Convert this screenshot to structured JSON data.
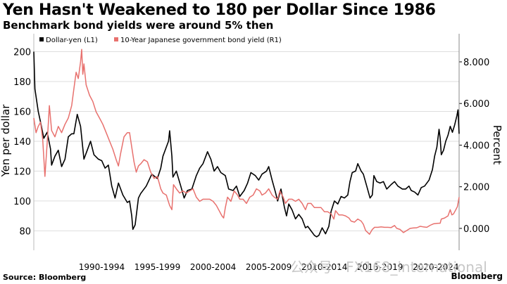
{
  "title": "Yen Hasn't Weakened to 180 per Dollar Since 1986",
  "subtitle": "Benchmark bond yields were around 5% then",
  "source": "Source: Bloomberg",
  "brand": "Bloomberg",
  "watermark": "公众号 · FX168_international",
  "colors": {
    "usdjpy": "#000000",
    "jgb": "#e8716e",
    "grid": "#dddddd",
    "axis": "#bbbbbb"
  },
  "chart_data": {
    "type": "line",
    "legend": [
      "Dollar-yen (L1)",
      "10-Year Japanese government bond yield (R1)"
    ],
    "ylabel_left": "Yen per dollar",
    "ylabel_right": "Percent",
    "x_ticks": [
      "1990-1994",
      "1995-1999",
      "2000-2004",
      "2005-2009",
      "2010-2014",
      "2015-2019",
      "2020-2024"
    ],
    "xlim": [
      1986.4,
      2024.6
    ],
    "ylim_left": [
      67,
      212
    ],
    "y_ticks_left": [
      80,
      100,
      120,
      140,
      160,
      180,
      200
    ],
    "ylim_right": [
      -1.05,
      9.35
    ],
    "y_ticks_right": [
      "0.000",
      "2.000",
      "4.000",
      "6.000",
      "8.000"
    ],
    "y_ticks_right_values": [
      0,
      2,
      4,
      6,
      8
    ],
    "grid": "horizontal",
    "legend_position": "top-left",
    "series": [
      {
        "name": "Dollar-yen (L1)",
        "axis": "left",
        "points": [
          [
            1986.4,
            200
          ],
          [
            1986.5,
            175
          ],
          [
            1986.8,
            160
          ],
          [
            1987.0,
            153
          ],
          [
            1987.3,
            142
          ],
          [
            1987.6,
            146
          ],
          [
            1987.9,
            135
          ],
          [
            1988.0,
            124
          ],
          [
            1988.3,
            130
          ],
          [
            1988.6,
            134
          ],
          [
            1988.9,
            123
          ],
          [
            1989.2,
            128
          ],
          [
            1989.5,
            143
          ],
          [
            1989.8,
            145
          ],
          [
            1990.0,
            145
          ],
          [
            1990.3,
            158
          ],
          [
            1990.6,
            150
          ],
          [
            1990.9,
            128
          ],
          [
            1991.2,
            134
          ],
          [
            1991.5,
            140
          ],
          [
            1991.8,
            131
          ],
          [
            1992.2,
            128
          ],
          [
            1992.5,
            127
          ],
          [
            1992.8,
            122
          ],
          [
            1993.1,
            124
          ],
          [
            1993.4,
            110
          ],
          [
            1993.7,
            102
          ],
          [
            1994.0,
            112
          ],
          [
            1994.4,
            104
          ],
          [
            1994.8,
            99
          ],
          [
            1995.0,
            100
          ],
          [
            1995.2,
            90
          ],
          [
            1995.3,
            81
          ],
          [
            1995.5,
            84
          ],
          [
            1995.8,
            102
          ],
          [
            1996.0,
            105
          ],
          [
            1996.5,
            110
          ],
          [
            1997.0,
            118
          ],
          [
            1997.5,
            115
          ],
          [
            1997.8,
            122
          ],
          [
            1998.0,
            130
          ],
          [
            1998.5,
            140
          ],
          [
            1998.6,
            147
          ],
          [
            1998.8,
            130
          ],
          [
            1998.9,
            116
          ],
          [
            1999.2,
            120
          ],
          [
            1999.6,
            110
          ],
          [
            1999.9,
            102
          ],
          [
            2000.2,
            107
          ],
          [
            2000.6,
            108
          ],
          [
            2001.0,
            117
          ],
          [
            2001.3,
            122
          ],
          [
            2001.6,
            125
          ],
          [
            2002.0,
            133
          ],
          [
            2002.3,
            128
          ],
          [
            2002.6,
            120
          ],
          [
            2002.9,
            123
          ],
          [
            2003.2,
            119
          ],
          [
            2003.6,
            117
          ],
          [
            2003.9,
            108
          ],
          [
            2004.3,
            107
          ],
          [
            2004.6,
            110
          ],
          [
            2004.9,
            103
          ],
          [
            2005.3,
            107
          ],
          [
            2005.6,
            112
          ],
          [
            2005.9,
            119
          ],
          [
            2006.3,
            117
          ],
          [
            2006.6,
            114
          ],
          [
            2006.9,
            118
          ],
          [
            2007.3,
            120
          ],
          [
            2007.5,
            123
          ],
          [
            2007.8,
            114
          ],
          [
            2008.1,
            106
          ],
          [
            2008.3,
            100
          ],
          [
            2008.6,
            108
          ],
          [
            2008.9,
            96
          ],
          [
            2009.1,
            90
          ],
          [
            2009.3,
            98
          ],
          [
            2009.6,
            94
          ],
          [
            2009.9,
            88
          ],
          [
            2010.2,
            91
          ],
          [
            2010.5,
            88
          ],
          [
            2010.8,
            82
          ],
          [
            2011.0,
            83
          ],
          [
            2011.3,
            80
          ],
          [
            2011.6,
            77
          ],
          [
            2011.8,
            76
          ],
          [
            2012.0,
            77
          ],
          [
            2012.3,
            82
          ],
          [
            2012.6,
            78
          ],
          [
            2012.9,
            83
          ],
          [
            2013.1,
            93
          ],
          [
            2013.4,
            100
          ],
          [
            2013.7,
            98
          ],
          [
            2014.0,
            103
          ],
          [
            2014.3,
            102
          ],
          [
            2014.6,
            104
          ],
          [
            2014.8,
            113
          ],
          [
            2015.0,
            119
          ],
          [
            2015.3,
            120
          ],
          [
            2015.5,
            125
          ],
          [
            2015.8,
            120
          ],
          [
            2016.0,
            118
          ],
          [
            2016.3,
            110
          ],
          [
            2016.6,
            102
          ],
          [
            2016.8,
            104
          ],
          [
            2016.95,
            117
          ],
          [
            2017.2,
            113
          ],
          [
            2017.5,
            112
          ],
          [
            2017.8,
            113
          ],
          [
            2018.1,
            108
          ],
          [
            2018.5,
            111
          ],
          [
            2018.8,
            113
          ],
          [
            2019.1,
            110
          ],
          [
            2019.5,
            108
          ],
          [
            2019.8,
            108
          ],
          [
            2020.1,
            110
          ],
          [
            2020.3,
            107
          ],
          [
            2020.6,
            106
          ],
          [
            2020.9,
            104
          ],
          [
            2021.2,
            109
          ],
          [
            2021.5,
            110
          ],
          [
            2021.9,
            114
          ],
          [
            2022.2,
            121
          ],
          [
            2022.4,
            130
          ],
          [
            2022.6,
            136
          ],
          [
            2022.8,
            148
          ],
          [
            2022.9,
            142
          ],
          [
            2023.0,
            131
          ],
          [
            2023.2,
            134
          ],
          [
            2023.4,
            140
          ],
          [
            2023.6,
            144
          ],
          [
            2023.8,
            150
          ],
          [
            2024.0,
            146
          ],
          [
            2024.2,
            151
          ],
          [
            2024.4,
            157
          ],
          [
            2024.5,
            161
          ],
          [
            2024.6,
            145
          ]
        ]
      },
      {
        "name": "10-Year Japanese government bond yield (R1)",
        "axis": "right",
        "points": [
          [
            1986.4,
            5.3
          ],
          [
            1986.6,
            4.6
          ],
          [
            1986.8,
            4.9
          ],
          [
            1987.0,
            5.1
          ],
          [
            1987.2,
            4.3
          ],
          [
            1987.4,
            2.5
          ],
          [
            1987.6,
            4.1
          ],
          [
            1987.8,
            5.9
          ],
          [
            1988.0,
            4.7
          ],
          [
            1988.3,
            4.4
          ],
          [
            1988.6,
            4.9
          ],
          [
            1988.9,
            4.6
          ],
          [
            1989.2,
            5.0
          ],
          [
            1989.5,
            5.3
          ],
          [
            1989.8,
            5.9
          ],
          [
            1990.0,
            6.7
          ],
          [
            1990.2,
            7.5
          ],
          [
            1990.4,
            7.2
          ],
          [
            1990.6,
            8.0
          ],
          [
            1990.7,
            8.6
          ],
          [
            1990.8,
            7.4
          ],
          [
            1990.9,
            7.9
          ],
          [
            1991.1,
            6.9
          ],
          [
            1991.4,
            6.4
          ],
          [
            1991.7,
            6.1
          ],
          [
            1992.0,
            5.6
          ],
          [
            1992.3,
            5.3
          ],
          [
            1992.6,
            5.0
          ],
          [
            1992.9,
            4.6
          ],
          [
            1993.2,
            4.2
          ],
          [
            1993.5,
            3.8
          ],
          [
            1993.8,
            3.3
          ],
          [
            1994.0,
            3.0
          ],
          [
            1994.2,
            3.6
          ],
          [
            1994.5,
            4.4
          ],
          [
            1994.8,
            4.6
          ],
          [
            1995.0,
            4.6
          ],
          [
            1995.2,
            3.9
          ],
          [
            1995.4,
            3.2
          ],
          [
            1995.6,
            2.7
          ],
          [
            1995.8,
            3.0
          ],
          [
            1996.0,
            3.1
          ],
          [
            1996.3,
            3.3
          ],
          [
            1996.6,
            3.2
          ],
          [
            1996.9,
            2.7
          ],
          [
            1997.2,
            2.4
          ],
          [
            1997.5,
            2.5
          ],
          [
            1997.8,
            1.9
          ],
          [
            1998.0,
            1.7
          ],
          [
            1998.3,
            1.6
          ],
          [
            1998.6,
            1.1
          ],
          [
            1998.8,
            0.9
          ],
          [
            1998.95,
            2.1
          ],
          [
            1999.2,
            1.9
          ],
          [
            1999.5,
            1.7
          ],
          [
            1999.8,
            1.8
          ],
          [
            2000.1,
            1.7
          ],
          [
            2000.4,
            1.8
          ],
          [
            2000.7,
            1.9
          ],
          [
            2001.0,
            1.5
          ],
          [
            2001.3,
            1.3
          ],
          [
            2001.6,
            1.4
          ],
          [
            2001.9,
            1.4
          ],
          [
            2002.2,
            1.4
          ],
          [
            2002.5,
            1.3
          ],
          [
            2002.8,
            1.1
          ],
          [
            2003.0,
            0.9
          ],
          [
            2003.3,
            0.6
          ],
          [
            2003.45,
            0.5
          ],
          [
            2003.6,
            1.0
          ],
          [
            2003.8,
            1.5
          ],
          [
            2004.1,
            1.3
          ],
          [
            2004.4,
            1.8
          ],
          [
            2004.7,
            1.6
          ],
          [
            2004.9,
            1.4
          ],
          [
            2005.2,
            1.4
          ],
          [
            2005.5,
            1.2
          ],
          [
            2005.8,
            1.5
          ],
          [
            2006.1,
            1.6
          ],
          [
            2006.4,
            1.9
          ],
          [
            2006.7,
            1.8
          ],
          [
            2006.9,
            1.6
          ],
          [
            2007.2,
            1.7
          ],
          [
            2007.5,
            1.9
          ],
          [
            2007.8,
            1.6
          ],
          [
            2008.0,
            1.5
          ],
          [
            2008.3,
            1.4
          ],
          [
            2008.5,
            1.8
          ],
          [
            2008.8,
            1.5
          ],
          [
            2009.0,
            1.2
          ],
          [
            2009.3,
            1.4
          ],
          [
            2009.6,
            1.4
          ],
          [
            2009.9,
            1.3
          ],
          [
            2010.2,
            1.4
          ],
          [
            2010.5,
            1.2
          ],
          [
            2010.8,
            0.9
          ],
          [
            2011.0,
            1.2
          ],
          [
            2011.3,
            1.2
          ],
          [
            2011.6,
            1.0
          ],
          [
            2011.9,
            1.0
          ],
          [
            2012.2,
            1.0
          ],
          [
            2012.5,
            0.8
          ],
          [
            2012.8,
            0.8
          ],
          [
            2013.1,
            0.7
          ],
          [
            2013.35,
            0.45
          ],
          [
            2013.5,
            0.85
          ],
          [
            2013.8,
            0.65
          ],
          [
            2014.1,
            0.65
          ],
          [
            2014.4,
            0.6
          ],
          [
            2014.7,
            0.5
          ],
          [
            2014.9,
            0.35
          ],
          [
            2015.2,
            0.3
          ],
          [
            2015.5,
            0.45
          ],
          [
            2015.8,
            0.35
          ],
          [
            2016.0,
            0.2
          ],
          [
            2016.2,
            -0.1
          ],
          [
            2016.4,
            -0.2
          ],
          [
            2016.55,
            -0.28
          ],
          [
            2016.8,
            -0.05
          ],
          [
            2017.0,
            0.05
          ],
          [
            2017.3,
            0.05
          ],
          [
            2017.6,
            0.07
          ],
          [
            2017.9,
            0.05
          ],
          [
            2018.2,
            0.05
          ],
          [
            2018.5,
            0.04
          ],
          [
            2018.8,
            0.14
          ],
          [
            2019.0,
            0.0
          ],
          [
            2019.3,
            -0.05
          ],
          [
            2019.6,
            -0.2
          ],
          [
            2019.9,
            -0.1
          ],
          [
            2020.2,
            0.0
          ],
          [
            2020.5,
            0.02
          ],
          [
            2020.8,
            0.03
          ],
          [
            2021.1,
            0.1
          ],
          [
            2021.4,
            0.07
          ],
          [
            2021.7,
            0.05
          ],
          [
            2022.0,
            0.15
          ],
          [
            2022.3,
            0.22
          ],
          [
            2022.6,
            0.24
          ],
          [
            2022.9,
            0.25
          ],
          [
            2023.0,
            0.45
          ],
          [
            2023.3,
            0.5
          ],
          [
            2023.6,
            0.6
          ],
          [
            2023.8,
            0.9
          ],
          [
            2023.95,
            0.65
          ],
          [
            2024.1,
            0.7
          ],
          [
            2024.3,
            0.9
          ],
          [
            2024.45,
            1.05
          ],
          [
            2024.6,
            1.5
          ]
        ]
      }
    ]
  }
}
